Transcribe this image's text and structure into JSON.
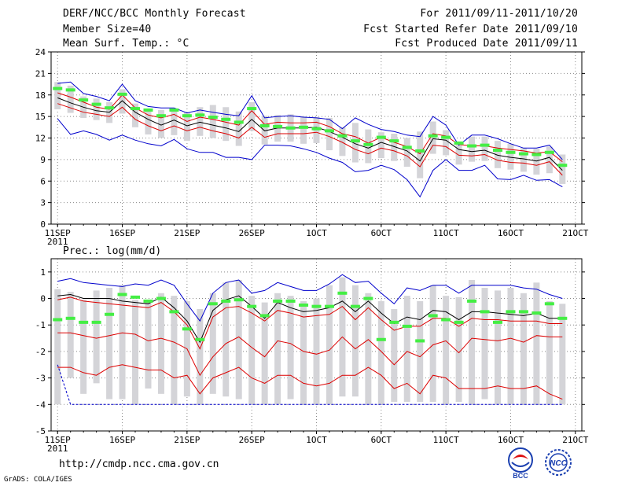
{
  "header": {
    "title": "DERF/NCC/BCC Monthly Forecast",
    "member_size": "Member Size=40",
    "variable": "Mean Surf. Temp.: °C",
    "forecast_period": "For 2011/09/11-2011/10/20",
    "started_date": "Fcst Started Refer Date 2011/09/10",
    "produced_date": "Fcst Produced Date 2011/09/11"
  },
  "footer": {
    "url": "http://cmdp.ncc.cma.gov.cn",
    "credit": "GrADS: COLA/IGES",
    "logo_left_text": "BCC",
    "logo_right_text": "NCC"
  },
  "colors": {
    "box": "#d4d4d8",
    "marker": "#44ee44",
    "mean": "#000000",
    "range": "#0000cc",
    "band": "#dd0000",
    "grid": "#888888"
  },
  "chart_data": [
    {
      "type": "box-ensemble",
      "title": "Mean Surf. Temp.: °C",
      "x": [
        1,
        2,
        3,
        4,
        5,
        6,
        7,
        8,
        9,
        10,
        11,
        12,
        13,
        14,
        15,
        16,
        17,
        18,
        19,
        20,
        21,
        22,
        23,
        24,
        25,
        26,
        27,
        28,
        29,
        30,
        31,
        32,
        33,
        34,
        35,
        36,
        37,
        38,
        39,
        40
      ],
      "x_tick_positions": [
        1,
        6,
        11,
        16,
        21,
        26,
        31,
        36
      ],
      "x_tick_labels": [
        "11SEP",
        "16SEP",
        "21SEP",
        "26SEP",
        "1OCT",
        "6OCT",
        "11OCT",
        "16OCT",
        "21OCT"
      ],
      "x_sub_label": "2011",
      "xlim": [
        0.5,
        41.5
      ],
      "ylim": [
        0,
        24
      ],
      "y_ticks": [
        0,
        3,
        6,
        9,
        12,
        15,
        18,
        21,
        24
      ],
      "series": [
        {
          "name": "max",
          "values": [
            19.6,
            19.8,
            18.2,
            17.8,
            17.2,
            19.5,
            17.2,
            16.4,
            16.2,
            16.2,
            15.5,
            15.9,
            15.6,
            15.3,
            15.1,
            17.9,
            14.8,
            15.0,
            15.1,
            14.9,
            14.8,
            14.6,
            13.3,
            14.8,
            13.9,
            13.2,
            12.9,
            12.4,
            12.2,
            15.0,
            13.8,
            11.0,
            12.4,
            12.4,
            11.9,
            11.2,
            10.6,
            10.6,
            11.0,
            9.0
          ]
        },
        {
          "name": "upper",
          "values": [
            18.3,
            17.7,
            17.0,
            16.3,
            16.0,
            18.0,
            16.2,
            15.2,
            14.8,
            15.3,
            14.3,
            14.9,
            14.6,
            14.2,
            13.8,
            15.8,
            13.9,
            14.2,
            14.1,
            14.1,
            14.2,
            13.6,
            12.6,
            12.2,
            11.3,
            12.1,
            11.4,
            10.8,
            9.8,
            12.6,
            12.3,
            11.1,
            10.9,
            10.9,
            10.6,
            10.4,
            10.2,
            9.9,
            10.1,
            8.7
          ]
        },
        {
          "name": "mean",
          "values": [
            17.6,
            16.9,
            16.3,
            15.8,
            15.6,
            17.2,
            15.6,
            14.6,
            13.8,
            14.5,
            13.7,
            14.2,
            13.8,
            13.4,
            12.9,
            14.6,
            13.0,
            13.4,
            13.4,
            13.4,
            13.5,
            12.9,
            12.1,
            11.2,
            10.6,
            11.4,
            10.8,
            10.2,
            8.8,
            11.9,
            11.7,
            10.4,
            10.1,
            10.3,
            9.6,
            9.3,
            9.1,
            8.8,
            9.3,
            7.5
          ]
        },
        {
          "name": "lower",
          "values": [
            16.8,
            16.2,
            15.6,
            15.3,
            15.0,
            16.3,
            14.6,
            13.7,
            13.0,
            13.7,
            13.0,
            13.5,
            13.0,
            12.6,
            12.0,
            13.5,
            12.1,
            12.6,
            12.6,
            12.6,
            12.8,
            12.2,
            11.4,
            10.4,
            9.8,
            10.6,
            10.2,
            9.5,
            8.0,
            11.0,
            10.8,
            9.6,
            9.5,
            9.7,
            8.9,
            8.6,
            8.5,
            8.2,
            8.7,
            6.8
          ]
        },
        {
          "name": "min",
          "values": [
            14.7,
            12.5,
            13.0,
            12.5,
            11.7,
            12.4,
            11.7,
            11.2,
            10.9,
            11.8,
            10.5,
            10.0,
            10.0,
            9.3,
            9.3,
            9.0,
            11.0,
            11.0,
            10.9,
            10.5,
            10.0,
            9.2,
            8.6,
            7.3,
            7.5,
            8.2,
            7.6,
            6.2,
            3.8,
            7.5,
            9.0,
            7.5,
            7.5,
            8.2,
            6.3,
            6.2,
            6.8,
            6.1,
            6.2,
            5.2
          ]
        },
        {
          "name": "obs",
          "values": [
            18.9,
            18.7,
            17.3,
            16.7,
            16.2,
            18.1,
            16.1,
            15.9,
            15.1,
            15.9,
            15.1,
            15.2,
            14.9,
            14.6,
            14.2,
            16.1,
            13.7,
            13.6,
            13.4,
            13.5,
            13.3,
            13.0,
            12.3,
            11.6,
            11.1,
            12.1,
            11.6,
            10.7,
            10.2,
            12.3,
            12.1,
            11.3,
            10.9,
            11.0,
            10.3,
            10.0,
            9.8,
            9.7,
            10.0,
            8.2
          ]
        },
        {
          "name": "box_top",
          "values": [
            19.8,
            19.3,
            17.8,
            17.5,
            17.0,
            18.8,
            16.8,
            16.1,
            15.9,
            16.0,
            15.6,
            16.3,
            16.6,
            16.3,
            15.7,
            17.0,
            15.1,
            15.2,
            15.3,
            15.0,
            14.9,
            14.8,
            13.5,
            14.1,
            13.2,
            12.8,
            12.6,
            12.0,
            12.9,
            14.3,
            13.1,
            11.3,
            12.2,
            12.2,
            11.6,
            11.2,
            10.6,
            10.5,
            10.8,
            9.7
          ]
        },
        {
          "name": "box_bottom",
          "values": [
            16.0,
            15.5,
            14.8,
            14.5,
            14.1,
            15.4,
            13.5,
            12.5,
            12.0,
            12.4,
            11.6,
            12.3,
            12.0,
            11.6,
            10.9,
            13.0,
            11.1,
            11.5,
            11.5,
            11.2,
            11.3,
            10.3,
            9.5,
            8.6,
            8.5,
            9.2,
            8.8,
            8.0,
            6.4,
            9.8,
            9.6,
            8.3,
            8.7,
            8.8,
            7.8,
            7.6,
            7.3,
            6.9,
            7.1,
            5.6
          ]
        }
      ]
    },
    {
      "type": "box-ensemble",
      "title": "Prec.: log(mm/d)",
      "x": [
        1,
        2,
        3,
        4,
        5,
        6,
        7,
        8,
        9,
        10,
        11,
        12,
        13,
        14,
        15,
        16,
        17,
        18,
        19,
        20,
        21,
        22,
        23,
        24,
        25,
        26,
        27,
        28,
        29,
        30,
        31,
        32,
        33,
        34,
        35,
        36,
        37,
        38,
        39,
        40
      ],
      "x_tick_positions": [
        1,
        6,
        11,
        16,
        21,
        26,
        31,
        36
      ],
      "x_tick_labels": [
        "11SEP",
        "16SEP",
        "21SEP",
        "26SEP",
        "1OCT",
        "6OCT",
        "11OCT",
        "16OCT",
        "21OCT"
      ],
      "x_sub_label": "2011",
      "xlim": [
        0.5,
        41.5
      ],
      "ylim": [
        -5,
        1.5
      ],
      "y_ticks": [
        -5,
        -4,
        -3,
        -2,
        -1,
        0,
        1
      ],
      "series": [
        {
          "name": "max",
          "values": [
            0.65,
            0.75,
            0.6,
            0.55,
            0.5,
            0.45,
            0.55,
            0.5,
            0.7,
            0.5,
            -0.2,
            -0.85,
            0.2,
            0.6,
            0.7,
            0.2,
            0.3,
            0.6,
            0.45,
            0.3,
            0.3,
            0.55,
            0.9,
            0.6,
            0.65,
            0.2,
            -0.2,
            0.4,
            0.3,
            0.5,
            0.5,
            0.2,
            0.5,
            0.5,
            0.5,
            0.5,
            0.4,
            0.35,
            0.15,
            0.0
          ]
        },
        {
          "name": "mean",
          "values": [
            0.1,
            0.15,
            0.0,
            0.0,
            0.0,
            -0.1,
            -0.15,
            -0.2,
            0.05,
            -0.35,
            -0.85,
            -1.65,
            -0.45,
            -0.05,
            0.1,
            -0.3,
            -0.75,
            -0.15,
            -0.35,
            -0.5,
            -0.45,
            -0.35,
            -0.1,
            -0.5,
            -0.1,
            -0.55,
            -0.95,
            -0.7,
            -0.8,
            -0.45,
            -0.5,
            -0.8,
            -0.5,
            -0.5,
            -0.55,
            -0.6,
            -0.65,
            -0.55,
            -0.75,
            -0.75
          ]
        },
        {
          "name": "upper",
          "values": [
            -0.05,
            0.05,
            -0.1,
            -0.15,
            -0.2,
            -0.25,
            -0.3,
            -0.35,
            -0.15,
            -0.5,
            -1.0,
            -1.9,
            -0.7,
            -0.35,
            -0.3,
            -0.55,
            -0.85,
            -0.45,
            -0.55,
            -0.7,
            -0.65,
            -0.6,
            -0.3,
            -0.8,
            -0.35,
            -0.8,
            -1.2,
            -1.05,
            -1.05,
            -0.75,
            -0.75,
            -1.05,
            -0.75,
            -0.8,
            -0.8,
            -0.85,
            -0.85,
            -0.85,
            -0.95,
            -0.95
          ]
        },
        {
          "name": "lower",
          "values": [
            -1.3,
            -1.3,
            -1.4,
            -1.5,
            -1.4,
            -1.3,
            -1.35,
            -1.6,
            -1.5,
            -1.65,
            -1.9,
            -2.9,
            -2.2,
            -1.7,
            -1.45,
            -1.85,
            -2.2,
            -1.6,
            -1.7,
            -2.0,
            -2.1,
            -1.95,
            -1.45,
            -1.9,
            -1.55,
            -2.0,
            -2.5,
            -2.0,
            -2.2,
            -1.75,
            -1.6,
            -2.05,
            -1.5,
            -1.55,
            -1.6,
            -1.5,
            -1.65,
            -1.4,
            -1.45,
            -1.45
          ]
        },
        {
          "name": "lowest",
          "values": [
            -2.6,
            -2.6,
            -2.8,
            -2.9,
            -2.6,
            -2.5,
            -2.6,
            -2.7,
            -2.7,
            -3.0,
            -2.9,
            -3.6,
            -3.0,
            -2.8,
            -2.6,
            -3.0,
            -3.2,
            -2.9,
            -2.9,
            -3.2,
            -3.3,
            -3.2,
            -2.9,
            -2.9,
            -2.6,
            -2.9,
            -3.4,
            -3.2,
            -3.6,
            -2.9,
            -3.0,
            -3.4,
            -3.4,
            -3.4,
            -3.3,
            -3.4,
            -3.4,
            -3.3,
            -3.6,
            -3.8
          ]
        },
        {
          "name": "min",
          "values": [
            -2.5,
            -4.0,
            -4.0,
            -4.0,
            -4.0,
            -4.0,
            -4.0,
            -4.0,
            -4.0,
            -4.0,
            -4.0,
            -4.0,
            -4.0,
            -4.0,
            -4.0,
            -4.0,
            -4.0,
            -4.0,
            -4.0,
            -4.0,
            -4.0,
            -4.0,
            -4.0,
            -4.0,
            -4.0,
            -4.0,
            -4.0,
            -4.0,
            -4.0,
            -4.0,
            -4.0,
            -4.0,
            -4.0,
            -4.0,
            -4.0,
            -4.0,
            -4.0,
            -4.0,
            -4.0,
            -4.0
          ]
        },
        {
          "name": "obs",
          "values": [
            -0.8,
            -0.75,
            -0.9,
            -0.9,
            -0.6,
            0.15,
            0.05,
            -0.1,
            0.0,
            -0.5,
            -1.15,
            -1.55,
            -0.2,
            -0.1,
            -0.05,
            -0.3,
            -0.65,
            -0.1,
            -0.1,
            -0.25,
            -0.3,
            -0.3,
            0.2,
            -0.3,
            0.0,
            -1.55,
            -0.9,
            -1.05,
            -1.6,
            -0.65,
            -0.8,
            -0.9,
            -0.1,
            -0.5,
            -0.9,
            -0.5,
            -0.5,
            -0.55,
            -0.2,
            -0.75
          ]
        },
        {
          "name": "box_top",
          "values": [
            0.35,
            0.25,
            -0.05,
            0.3,
            0.4,
            0.5,
            -0.05,
            -0.05,
            0.2,
            0.1,
            -0.1,
            -0.4,
            0.2,
            0.6,
            0.7,
            0.1,
            -0.15,
            0.2,
            0.1,
            -0.1,
            0.0,
            0.5,
            0.8,
            0.5,
            0.2,
            -0.1,
            -0.4,
            0.1,
            -0.1,
            0.5,
            0.1,
            0.05,
            0.7,
            0.4,
            0.3,
            0.4,
            0.2,
            0.6,
            -0.1,
            -0.2
          ]
        },
        {
          "name": "box_bottom",
          "values": [
            -4.0,
            -3.0,
            -3.6,
            -3.2,
            -3.8,
            -3.8,
            -4.0,
            -3.4,
            -3.6,
            -4.0,
            -3.7,
            -4.0,
            -3.6,
            -3.7,
            -3.8,
            -4.0,
            -4.0,
            -4.0,
            -3.8,
            -4.0,
            -4.0,
            -4.0,
            -3.7,
            -3.7,
            -4.0,
            -4.0,
            -3.9,
            -3.9,
            -3.9,
            -3.9,
            -4.0,
            -3.9,
            -4.0,
            -3.8,
            -4.0,
            -4.0,
            -4.0,
            -4.0,
            -4.0,
            -4.0
          ]
        }
      ]
    }
  ]
}
